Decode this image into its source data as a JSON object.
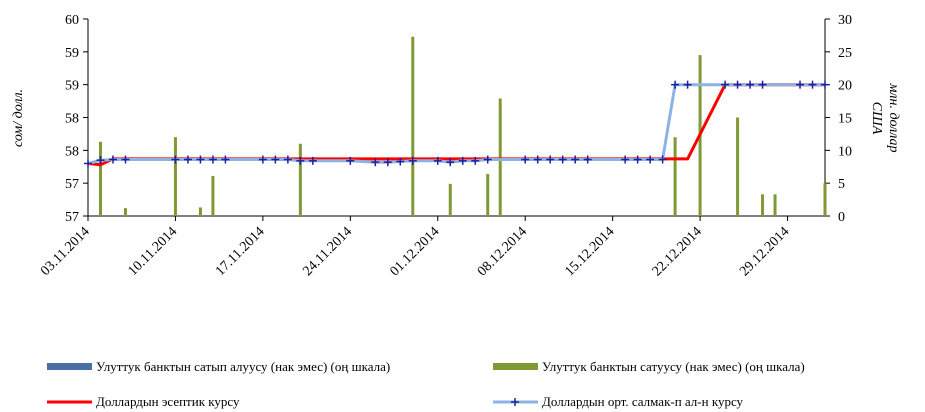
{
  "chart_data": {
    "type": "bar+line",
    "title": "",
    "y_left_label": "сом/ долл.",
    "y_right_label": [
      "млн. доллар",
      "США"
    ],
    "y_left_ticks": [
      "60",
      "59",
      "59",
      "58",
      "58",
      "57",
      "57"
    ],
    "y_left_range": [
      57,
      60
    ],
    "y_right_ticks": [
      "30",
      "25",
      "20",
      "15",
      "10",
      "5",
      "0"
    ],
    "y_right_range": [
      0,
      30
    ],
    "x_tick_labels": [
      "03.11.2014",
      "10.11.2014",
      "17.11.2014",
      "24.11.2014",
      "01.12.2014",
      "08.12.2014",
      "15.12.2014",
      "22.12.2014",
      "29.12.2014"
    ],
    "x_range_days": [
      0,
      59
    ],
    "legend": {
      "placement": "bottom",
      "items": [
        {
          "label": "Улуттук банктын сатып алуусу (нак эмес) (оң шкала)",
          "color": "#4a6fa5",
          "kind": "bar"
        },
        {
          "label": "Улуттук банктын сатуусу (нак эмес) (оң шкала)",
          "color": "#7f9a35",
          "kind": "bar"
        },
        {
          "label": "Доллардын эсептик курсу",
          "color": "#ff0000",
          "kind": "line"
        },
        {
          "label": "Доллардын орт. салмак-п ал-н курсу",
          "color": "#8db3e2",
          "kind": "line-marker"
        }
      ]
    },
    "series": [
      {
        "name": "Улуттук банктын сатуусу (нак эмес) (оң шкала)",
        "kind": "bar",
        "axis": "right",
        "color": "#7f9a35",
        "x": [
          1,
          3,
          7,
          9,
          10,
          17,
          26,
          29,
          32,
          33,
          47,
          49,
          52,
          54,
          55,
          59
        ],
        "values": [
          11.3,
          1.2,
          12.0,
          1.3,
          6.1,
          11.0,
          27.3,
          4.9,
          6.4,
          17.9,
          12.0,
          24.5,
          15.0,
          3.3,
          3.3,
          5.0
        ]
      },
      {
        "name": "Доллардын эсептик курсу",
        "kind": "line",
        "axis": "left",
        "color": "#ff0000",
        "x": [
          0,
          1,
          2,
          48,
          51,
          59
        ],
        "values": [
          57.8,
          57.78,
          57.87,
          57.87,
          59.0,
          59.0
        ]
      },
      {
        "name": "Доллардын орт. салмак-п ал-н курсу",
        "kind": "line-marker",
        "axis": "left",
        "color": "#8db3e2",
        "marker_color": "#1f1f9f",
        "x": [
          0,
          1,
          2,
          3,
          7,
          8,
          9,
          10,
          11,
          14,
          15,
          16,
          17,
          18,
          21,
          23,
          24,
          25,
          26,
          28,
          29,
          30,
          31,
          32,
          35,
          36,
          37,
          38,
          39,
          40,
          43,
          44,
          45,
          46,
          47,
          48,
          51,
          52,
          53,
          54,
          57,
          58,
          59
        ],
        "values": [
          57.8,
          57.85,
          57.86,
          57.86,
          57.86,
          57.86,
          57.86,
          57.86,
          57.86,
          57.86,
          57.86,
          57.86,
          57.84,
          57.84,
          57.84,
          57.82,
          57.82,
          57.83,
          57.84,
          57.84,
          57.82,
          57.84,
          57.84,
          57.86,
          57.86,
          57.86,
          57.86,
          57.86,
          57.86,
          57.86,
          57.86,
          57.86,
          57.86,
          57.86,
          59.0,
          59.0,
          59.0,
          59.0,
          59.0,
          59.0,
          59.0,
          59.0,
          59.0
        ]
      }
    ]
  }
}
